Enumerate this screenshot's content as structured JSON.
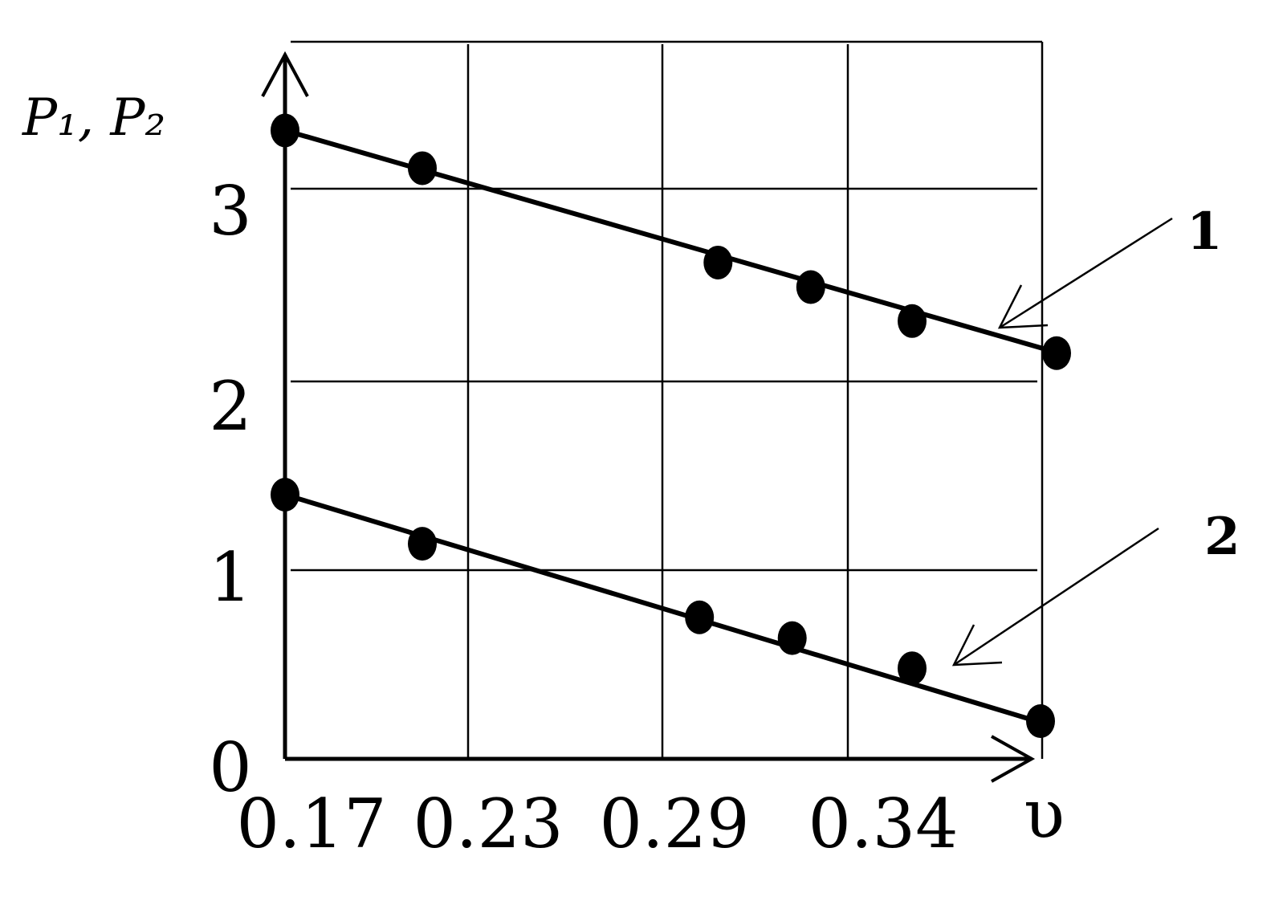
{
  "chart_data": {
    "type": "line",
    "title": "",
    "xlabel": "υ",
    "ylabel": "P₁, P₂",
    "x_ticks": [
      "0.17",
      "0.23",
      "0.29",
      "0.34"
    ],
    "y_ticks": [
      "0",
      "1",
      "2",
      "3"
    ],
    "xlim": [
      0.17,
      0.38
    ],
    "ylim": [
      0,
      3.74
    ],
    "grid": true,
    "series": [
      {
        "name": "1",
        "x": [
          0.17,
          0.215,
          0.305,
          0.33,
          0.36,
          0.405
        ],
        "y": [
          3.33,
          3.13,
          2.63,
          2.5,
          2.32,
          2.15
        ]
      },
      {
        "name": "2",
        "x": [
          0.17,
          0.215,
          0.3,
          0.325,
          0.36,
          0.4
        ],
        "y": [
          1.4,
          1.14,
          0.75,
          0.64,
          0.48,
          0.2
        ]
      }
    ],
    "colors": {
      "line": "#000000",
      "marker": "#000000",
      "grid": "#000000"
    }
  }
}
